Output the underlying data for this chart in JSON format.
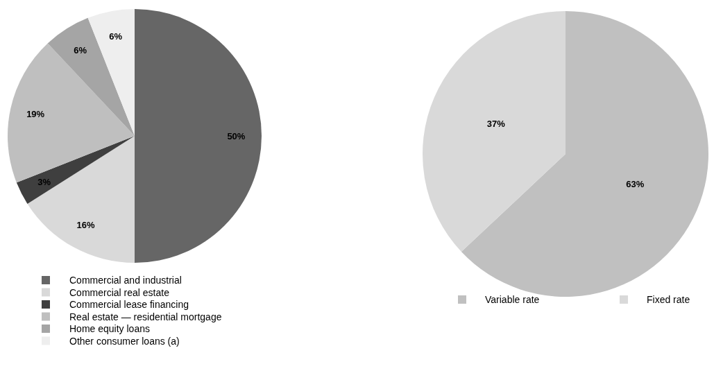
{
  "chart_data": [
    {
      "type": "pie",
      "categories": [
        "Commercial and industrial",
        "Commercial real estate",
        "Commercial lease financing",
        "Real estate — residential mortgage",
        "Home equity loans",
        "Other consumer loans (a)"
      ],
      "values": [
        50,
        16,
        3,
        19,
        6,
        6
      ],
      "colors": [
        "#666666",
        "#d9d9d9",
        "#3f3f3f",
        "#bfbfbf",
        "#a5a5a5",
        "#eeeeee"
      ],
      "value_labels": [
        "50%",
        "16%",
        "3%",
        "19%",
        "6%",
        "6%"
      ],
      "legend": "bottom"
    },
    {
      "type": "pie",
      "categories": [
        "Variable rate",
        "Fixed rate"
      ],
      "values": [
        63,
        37
      ],
      "colors": [
        "#c0c0c0",
        "#d9d9d9"
      ],
      "value_labels": [
        "63%",
        "37%"
      ],
      "legend": "bottom"
    }
  ]
}
